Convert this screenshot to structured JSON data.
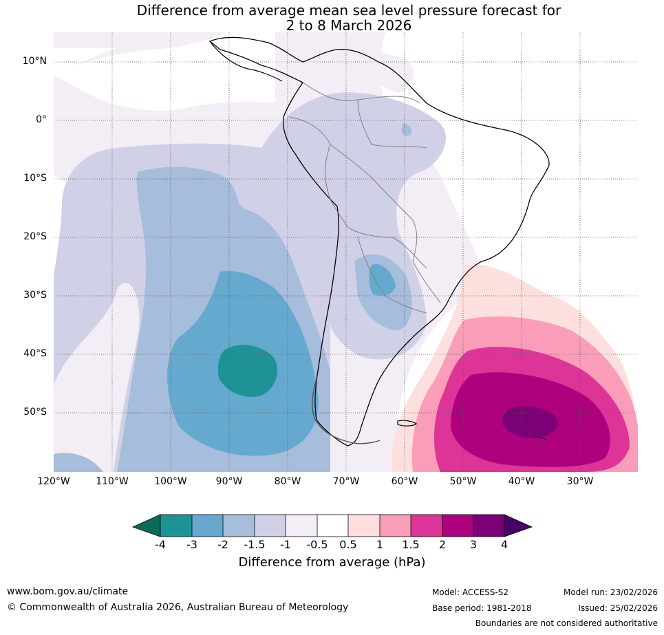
{
  "title_line1": "Difference from average mean sea level pressure forecast for",
  "title_line2": "2 to 8 March 2026",
  "lat_labels": [
    "10°N",
    "0°",
    "10°S",
    "20°S",
    "30°S",
    "40°S",
    "50°S"
  ],
  "lon_labels": [
    "120°W",
    "110°W",
    "100°W",
    "90°W",
    "80°W",
    "70°W",
    "60°W",
    "50°W",
    "40°W",
    "30°W"
  ],
  "colorbar": {
    "title": "Difference from average (hPa)",
    "tick_labels": [
      "-4",
      "-3",
      "-2",
      "-1.5",
      "-1",
      "-0.5",
      "0.5",
      "1",
      "1.5",
      "2",
      "3",
      "4"
    ],
    "colors": {
      "below_min": "#0b6b5a",
      "n4_n3": "#1e9396",
      "n3_n2": "#66a9cf",
      "n2_n15": "#a6bddb",
      "n15_n1": "#d0d1e6",
      "n1_n05": "#f3edf5",
      "n05_05": "#ffffff",
      "p05_1": "#fde0dd",
      "p1_15": "#f99db8",
      "p15_2": "#dd3497",
      "p2_3": "#ae017e",
      "p3_4": "#7a0177",
      "above_max": "#49006a"
    }
  },
  "footer": {
    "url": "www.bom.gov.au/climate",
    "copyright": "© Commonwealth of Australia 2026, Australian Bureau of Meteorology",
    "model": "Model: ACCESS-S2",
    "base_period": "Base period: 1981-2018",
    "model_run": "Model run: 23/02/2026",
    "issued": "Issued: 25/02/2026",
    "disclaimer": "Boundaries are not considered authoritative"
  }
}
